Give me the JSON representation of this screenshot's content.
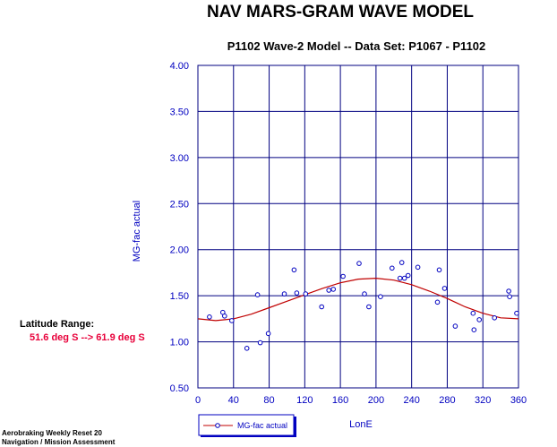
{
  "header": {
    "title": "NAV MARS-GRAM WAVE MODEL",
    "subtitle": "P1102 Wave-2 Model -- Data Set:  P1067 - P1102"
  },
  "side_panel": {
    "latitude_label": "Latitude Range:",
    "latitude_value": "51.6 deg S  -->  61.9 deg S"
  },
  "footer": {
    "line1": "Aerobraking Weekly Reset 20",
    "line2": "Navigation / Mission Assessment"
  },
  "colors": {
    "grid": "#000080",
    "axis_text": "#0000c0",
    "model_curve": "#c00000",
    "points": "#0000c0"
  },
  "chart_data": {
    "type": "scatter",
    "xlabel": "LonE",
    "ylabel": "MG-fac actual",
    "xlim": [
      0,
      360
    ],
    "ylim": [
      0.5,
      4.0
    ],
    "x_ticks": [
      "0",
      "40",
      "80",
      "120",
      "160",
      "200",
      "240",
      "280",
      "320",
      "360"
    ],
    "y_ticks": [
      "0.50",
      "1.00",
      "1.50",
      "2.00",
      "2.50",
      "3.00",
      "3.50",
      "4.00"
    ],
    "grid": true,
    "legend": {
      "position": "bottom-left",
      "entries": [
        "MG-fac actual"
      ]
    },
    "series": [
      {
        "name": "MG-fac actual",
        "kind": "points",
        "x": [
          13,
          28,
          30,
          38,
          55,
          67,
          70,
          79,
          97,
          108,
          111,
          121,
          139,
          147,
          152,
          163,
          181,
          187,
          192,
          205,
          218,
          227,
          229,
          232,
          236,
          247,
          269,
          271,
          277,
          289,
          309,
          310,
          316,
          333,
          349,
          350,
          358
        ],
        "y": [
          1.27,
          1.32,
          1.28,
          1.23,
          0.93,
          1.51,
          0.99,
          1.09,
          1.52,
          1.78,
          1.53,
          1.52,
          1.38,
          1.56,
          1.57,
          1.71,
          1.85,
          1.52,
          1.38,
          1.49,
          1.8,
          1.69,
          1.86,
          1.69,
          1.72,
          1.81,
          1.43,
          1.78,
          1.58,
          1.17,
          1.31,
          1.13,
          1.24,
          1.26,
          1.55,
          1.49,
          1.31
        ]
      },
      {
        "name": "",
        "kind": "line",
        "x": [
          0,
          20,
          40,
          60,
          80,
          100,
          120,
          140,
          160,
          180,
          200,
          220,
          240,
          260,
          280,
          300,
          320,
          340,
          360
        ],
        "y": [
          1.25,
          1.23,
          1.25,
          1.3,
          1.37,
          1.44,
          1.51,
          1.58,
          1.64,
          1.68,
          1.69,
          1.67,
          1.62,
          1.55,
          1.47,
          1.38,
          1.31,
          1.26,
          1.25
        ]
      }
    ]
  }
}
